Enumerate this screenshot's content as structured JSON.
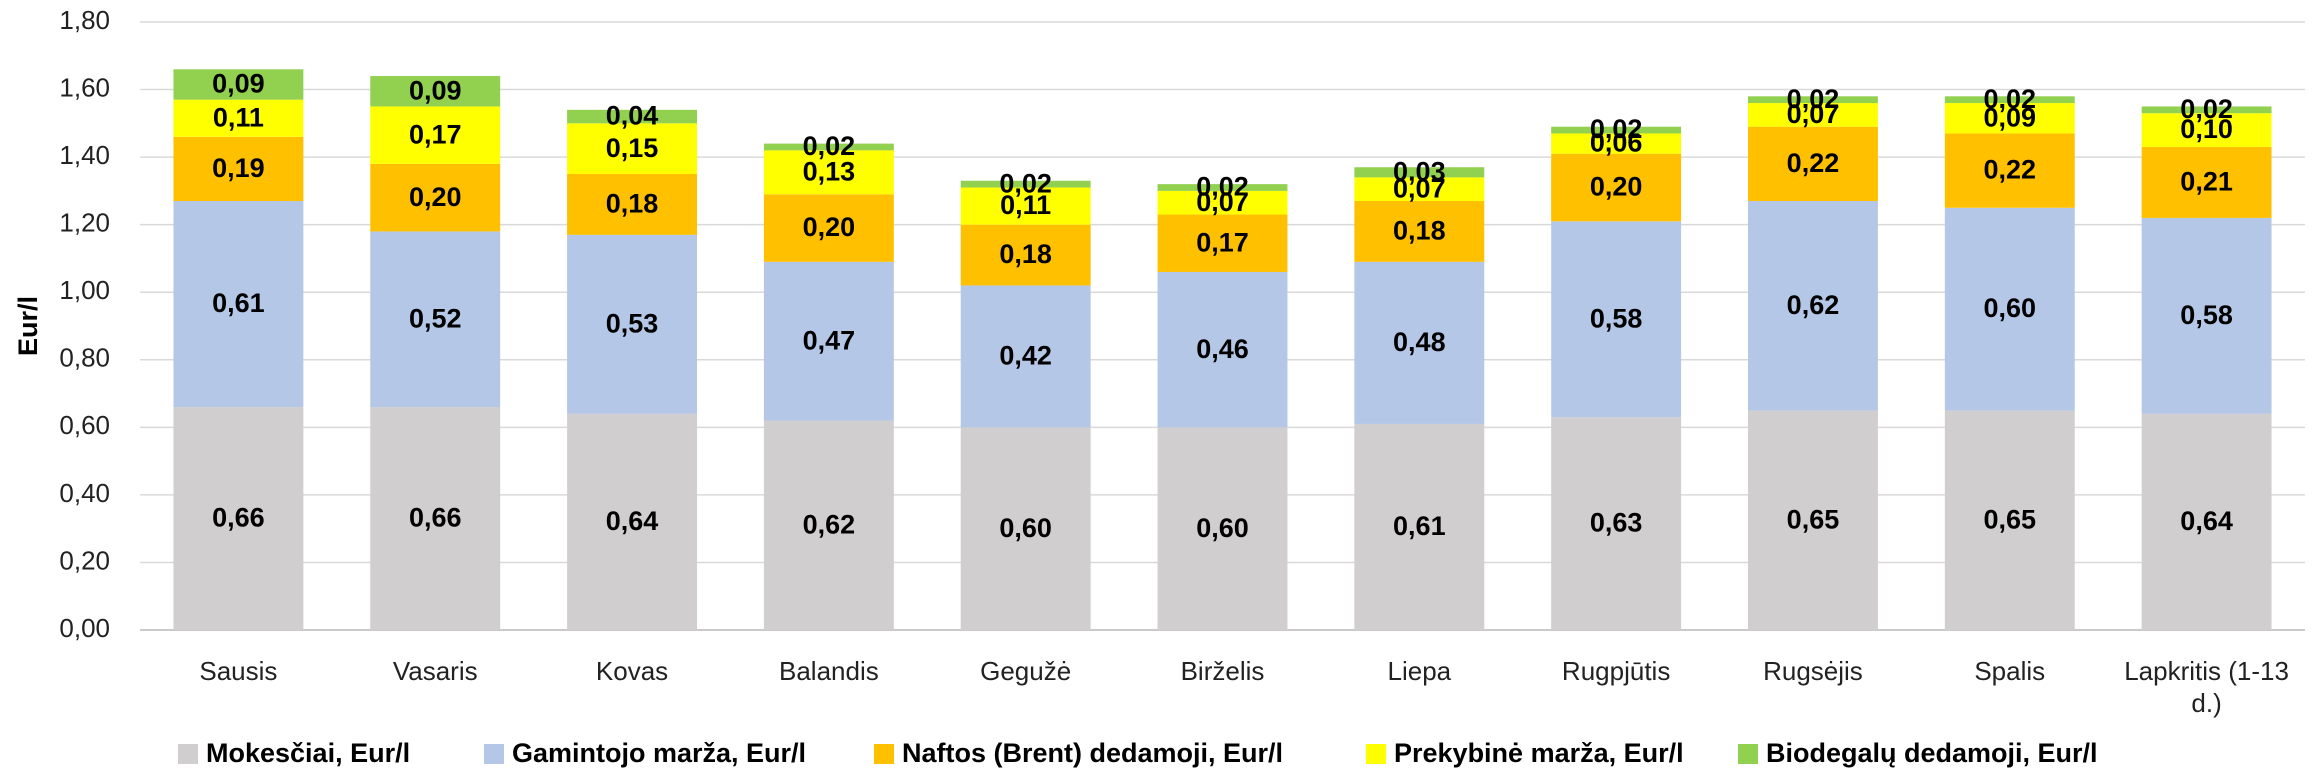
{
  "chart_data": {
    "type": "stacked_bar",
    "y_label": "Eur/l",
    "categories": [
      "Sausis",
      "Vasaris",
      "Kovas",
      "Balandis",
      "Gegužė",
      "Birželis",
      "Liepa",
      "Rugpjūtis",
      "Rugsėjis",
      "Spalis",
      "Lapkritis (1-13 d.)"
    ],
    "series": [
      {
        "name": "Mokesčiai, Eur/l",
        "color": "#d0cece",
        "values": [
          0.66,
          0.66,
          0.64,
          0.62,
          0.6,
          0.6,
          0.61,
          0.63,
          0.65,
          0.65,
          0.64
        ],
        "value_labels": [
          "0,66",
          "0,66",
          "0,64",
          "0,62",
          "0,60",
          "0,60",
          "0,61",
          "0,63",
          "0,65",
          "0,65",
          "0,64"
        ]
      },
      {
        "name": "Gamintojo marža, Eur/l",
        "color": "#b4c7e7",
        "values": [
          0.61,
          0.52,
          0.53,
          0.47,
          0.42,
          0.46,
          0.48,
          0.58,
          0.62,
          0.6,
          0.58
        ],
        "value_labels": [
          "0,61",
          "0,52",
          "0,53",
          "0,47",
          "0,42",
          "0,46",
          "0,48",
          "0,58",
          "0,62",
          "0,60",
          "0,58"
        ]
      },
      {
        "name": "Naftos (Brent) dedamoji, Eur/l",
        "color": "#ffc000",
        "values": [
          0.19,
          0.2,
          0.18,
          0.2,
          0.18,
          0.17,
          0.18,
          0.2,
          0.22,
          0.22,
          0.21
        ],
        "value_labels": [
          "0,19",
          "0,20",
          "0,18",
          "0,20",
          "0,18",
          "0,17",
          "0,18",
          "0,20",
          "0,22",
          "0,22",
          "0,21"
        ]
      },
      {
        "name": "Prekybinė marža, Eur/l",
        "color": "#ffff00",
        "values": [
          0.11,
          0.17,
          0.15,
          0.13,
          0.11,
          0.07,
          0.07,
          0.06,
          0.07,
          0.09,
          0.1
        ],
        "value_labels": [
          "0,11",
          "0,17",
          "0,15",
          "0,13",
          "0,11",
          "0,07",
          "0,07",
          "0,06",
          "0,07",
          "0,09",
          "0,10"
        ]
      },
      {
        "name": "Biodegalų dedamoji, Eur/l",
        "color": "#92d050",
        "values": [
          0.09,
          0.09,
          0.04,
          0.02,
          0.02,
          0.02,
          0.03,
          0.02,
          0.02,
          0.02,
          0.02
        ],
        "value_labels": [
          "0,09",
          "0,09",
          "0,04",
          "0,02",
          "0,02",
          "0,02",
          "0,03",
          "0,02",
          "0,02",
          "0,02",
          "0,02"
        ]
      }
    ],
    "ylim": [
      0,
      1.8
    ],
    "yticks": [
      {
        "value": 0,
        "label": "0,00"
      },
      {
        "value": 0.2,
        "label": "0,20"
      },
      {
        "value": 0.4,
        "label": "0,40"
      },
      {
        "value": 0.6,
        "label": "0,60"
      },
      {
        "value": 0.8,
        "label": "0,80"
      },
      {
        "value": 1.0,
        "label": "1,00"
      },
      {
        "value": 1.2,
        "label": "1,20"
      },
      {
        "value": 1.4,
        "label": "1,40"
      },
      {
        "value": 1.6,
        "label": "1,60"
      },
      {
        "value": 1.8,
        "label": "1,80"
      }
    ],
    "grid": true,
    "legend": "bottom"
  }
}
